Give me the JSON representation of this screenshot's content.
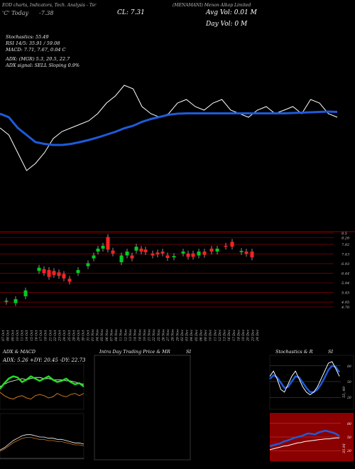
{
  "header": {
    "tools": "EOD charts, Indicators, Tech. Analysis - Tsr",
    "symbol": "(MENAMANI) Menon Alkop Limited",
    "left_top": "'C' Today",
    "change": "-7.38",
    "close": "CL: 7.31",
    "avg_vol": "Avg Vol: 0.01 M",
    "day_vol": "Day Vol: 0   M"
  },
  "indicators": {
    "stochastics": "Stochastics: 55.49",
    "rsi": "RSI 14/5: 35.91 / 59.08",
    "macd": "MACD: 7.71, 7.67, 0.04  C",
    "adx": "ADX:                    (MGR) 5.3,  20.5,  22.7",
    "adx_signal": "ADX  signal: SELL  Sloping  0.9%"
  },
  "colors": {
    "up": "#00cc22",
    "down": "#ff2222",
    "ema": "#1e5bd9",
    "price_line": "#ffffff",
    "grid": "#8b0000",
    "red_panel": "#8b0000"
  },
  "chart_data": [
    {
      "type": "line",
      "name": "overview",
      "series": [
        {
          "name": "",
          "values": [
            7.2,
            7.0,
            6.5,
            6.0,
            6.2,
            6.5,
            6.9,
            7.1,
            7.2,
            7.3,
            7.4,
            7.6,
            7.9,
            8.1,
            8.4,
            8.3,
            7.8,
            7.6,
            7.5,
            7.6,
            7.9,
            8.0,
            7.8,
            7.7,
            7.9,
            8.0,
            7.7,
            7.6,
            7.5,
            7.7,
            7.8,
            7.6,
            7.7,
            7.8,
            7.6,
            8.0,
            7.9,
            7.6,
            7.5
          ]
        },
        {
          "name": "",
          "values": [
            7.6,
            7.5,
            7.2,
            7.0,
            6.8,
            6.75,
            6.72,
            6.72,
            6.75,
            6.8,
            6.86,
            6.93,
            7.01,
            7.09,
            7.19,
            7.26,
            7.37,
            7.45,
            7.51,
            7.57,
            7.6,
            7.61,
            7.61,
            7.61,
            7.61,
            7.61,
            7.61,
            7.61,
            7.61,
            7.61,
            7.61,
            7.61,
            7.61,
            7.62,
            7.63,
            7.64,
            7.65,
            7.66,
            7.65
          ]
        }
      ],
      "ylim": [
        5.8,
        8.8
      ]
    },
    {
      "type": "bar",
      "name": "candlesticks",
      "categories": [
        "07 Oct",
        "08 Oct",
        "09 Oct",
        "10 Oct",
        "11 Oct",
        "14 Oct",
        "15 Oct",
        "16 Oct",
        "17 Oct",
        "18 Oct",
        "21 Oct",
        "22 Oct",
        "23 Oct",
        "24 Oct",
        "25 Oct",
        "28 Oct",
        "29 Oct",
        "30 Oct",
        "31 Oct",
        "01 Nov",
        "04 Nov",
        "05 Nov",
        "06 Nov",
        "07 Nov",
        "08 Nov",
        "11 Nov",
        "12 Nov",
        "13 Nov",
        "14 Nov",
        "18 Nov",
        "19 Nov",
        "21 Nov",
        "22 Nov",
        "25 Nov",
        "26 Nov",
        "27 Nov",
        "28 Nov",
        "29 Nov",
        "02 Dec",
        "03 Dec",
        "04 Dec",
        "05 Dec",
        "06 Dec",
        "09 Dec",
        "10 Dec",
        "11 Dec",
        "12 Dec",
        "13 Dec",
        "16 Dec",
        "17 Dec",
        "18 Dec",
        "19 Dec",
        "20 Dec",
        "23 Dec",
        "24 Dec"
      ],
      "y_ticks": [
        "8.5",
        "8.26",
        "7.92",
        "7.43",
        "6.93",
        "6.44",
        "5.94",
        "5.45",
        "4.95",
        "4.70"
      ],
      "candles": [
        {
          "x": 9,
          "o": 4.97,
          "c": 5.02
        },
        {
          "x": 22,
          "o": 4.9,
          "c": 5.1
        },
        {
          "x": 36,
          "o": 5.25,
          "c": 5.55
        },
        {
          "x": 55,
          "o": 6.55,
          "c": 6.72
        },
        {
          "x": 62,
          "o": 6.65,
          "c": 6.45
        },
        {
          "x": 69,
          "o": 6.6,
          "c": 6.25
        },
        {
          "x": 76,
          "o": 6.55,
          "c": 6.35
        },
        {
          "x": 83,
          "o": 6.48,
          "c": 6.3
        },
        {
          "x": 90,
          "o": 6.4,
          "c": 6.17
        },
        {
          "x": 98,
          "o": 6.15,
          "c": 6.0
        },
        {
          "x": 110,
          "o": 6.45,
          "c": 6.6
        },
        {
          "x": 124,
          "o": 6.8,
          "c": 6.95
        },
        {
          "x": 132,
          "o": 7.2,
          "c": 7.35
        },
        {
          "x": 138,
          "o": 7.55,
          "c": 7.7
        },
        {
          "x": 145,
          "o": 7.7,
          "c": 7.85
        },
        {
          "x": 152,
          "o": 8.3,
          "c": 7.65
        },
        {
          "x": 159,
          "o": 7.6,
          "c": 7.45
        },
        {
          "x": 171,
          "o": 7.0,
          "c": 7.35
        },
        {
          "x": 179,
          "o": 7.35,
          "c": 7.55
        },
        {
          "x": 186,
          "o": 7.35,
          "c": 7.2
        },
        {
          "x": 192,
          "o": 7.6,
          "c": 7.8
        },
        {
          "x": 199,
          "o": 7.7,
          "c": 7.55
        },
        {
          "x": 205,
          "o": 7.65,
          "c": 7.52
        },
        {
          "x": 215,
          "o": 7.45,
          "c": 7.35
        },
        {
          "x": 222,
          "o": 7.5,
          "c": 7.4
        },
        {
          "x": 229,
          "o": 7.55,
          "c": 7.45
        },
        {
          "x": 236,
          "o": 7.35,
          "c": 7.22
        },
        {
          "x": 245,
          "o": 7.25,
          "c": 7.32
        },
        {
          "x": 258,
          "o": 7.45,
          "c": 7.55
        },
        {
          "x": 265,
          "o": 7.45,
          "c": 7.28
        },
        {
          "x": 272,
          "o": 7.45,
          "c": 7.28
        },
        {
          "x": 280,
          "o": 7.35,
          "c": 7.55
        },
        {
          "x": 288,
          "o": 7.55,
          "c": 7.38
        },
        {
          "x": 298,
          "o": 7.7,
          "c": 7.55
        },
        {
          "x": 306,
          "o": 7.55,
          "c": 7.7
        },
        {
          "x": 318,
          "o": 7.85,
          "c": 7.8
        },
        {
          "x": 327,
          "o": 8.05,
          "c": 7.8
        },
        {
          "x": 340,
          "o": 7.52,
          "c": 7.58
        },
        {
          "x": 347,
          "o": 7.55,
          "c": 7.43
        },
        {
          "x": 355,
          "o": 7.55,
          "c": 7.25
        }
      ]
    },
    {
      "type": "line",
      "name": "adx-macd",
      "title": "ADX  & MACD",
      "readout": "ADX: 5.26  +DY: 20.45 -DY: 22.73",
      "series": [
        {
          "name": "",
          "values": [
            18,
            23,
            27,
            29,
            28,
            24,
            26,
            29,
            27,
            25,
            27,
            29,
            26,
            24,
            25,
            27,
            24,
            22,
            23,
            20
          ]
        },
        {
          "name": "",
          "values": [
            15,
            12,
            10,
            9,
            11,
            12,
            10,
            9,
            12,
            13,
            12,
            10,
            11,
            14,
            12,
            11,
            13,
            14,
            12,
            14
          ]
        },
        {
          "name": "",
          "values": [
            20,
            22,
            24,
            25,
            26,
            27,
            26,
            27,
            28,
            28,
            27,
            27,
            26,
            26,
            26,
            25,
            25,
            24,
            23,
            22
          ]
        },
        {
          "name": "",
          "values": [
            10,
            12,
            15,
            18,
            20,
            22,
            23,
            23,
            22,
            21,
            21,
            20,
            20,
            19,
            19,
            18,
            17,
            16,
            16,
            15
          ]
        }
      ]
    },
    {
      "type": "line",
      "name": "stochastics-rsi",
      "title": "Stochastics & R",
      "title_right": "SI",
      "stoch_labels": [
        "80",
        "50",
        "20"
      ],
      "stoch_value": "55, 49",
      "rsi_labels": [
        "80",
        "50",
        "20"
      ],
      "rsi_value": "35.91",
      "stoch_series": [
        {
          "name": "",
          "values": [
            60,
            70,
            55,
            35,
            30,
            45,
            60,
            70,
            55,
            40,
            30,
            25,
            30,
            40,
            55,
            70,
            85,
            88,
            75,
            60
          ]
        },
        {
          "name": "",
          "values": [
            55,
            62,
            58,
            48,
            38,
            40,
            50,
            60,
            58,
            48,
            38,
            30,
            30,
            35,
            45,
            58,
            72,
            80,
            78,
            68
          ]
        }
      ],
      "rsi_series": [
        {
          "name": "",
          "values": [
            30,
            32,
            34,
            36,
            40,
            42,
            45,
            48,
            50,
            52,
            55,
            58,
            57,
            56,
            60,
            62,
            64,
            62,
            60,
            57,
            52
          ]
        },
        {
          "name": "",
          "values": [
            22,
            24,
            26,
            28,
            30,
            31,
            33,
            35,
            37,
            38,
            40,
            41,
            42,
            43,
            44,
            45,
            46,
            46,
            47,
            48,
            48
          ]
        }
      ]
    }
  ],
  "panels": {
    "intraday_title": "Intra  Day Trading Price  & MR",
    "intraday_title_right": "SI"
  }
}
